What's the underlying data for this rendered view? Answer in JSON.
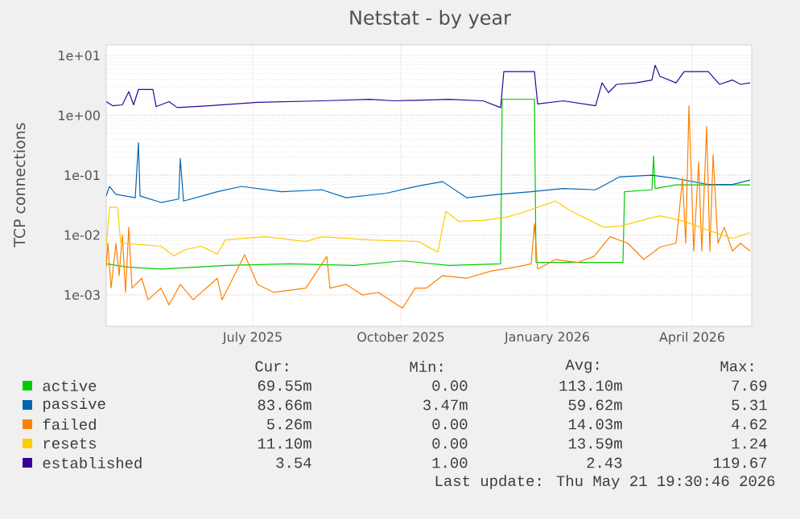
{
  "chart_data": {
    "type": "line",
    "title": "Netstat - by year",
    "ylabel": "TCP connections",
    "log": "y",
    "grid": true,
    "legend": "bottom",
    "xlim": [
      "2025-04-16",
      "2026-05-22"
    ],
    "xticks": [
      {
        "value": "2025-07-16",
        "label": "July 2025"
      },
      {
        "value": "2025-10-16",
        "label": "October 2025"
      },
      {
        "value": "2026-01-15",
        "label": "January 2026"
      },
      {
        "value": "2026-04-15",
        "label": "April 2026"
      }
    ],
    "ylim": [
      0.0003,
      15
    ],
    "yticks": [
      {
        "value": 0.001,
        "label": "1e-03"
      },
      {
        "value": 0.01,
        "label": "1e-02"
      },
      {
        "value": 0.1,
        "label": "1e-01"
      },
      {
        "value": 1,
        "label": "1e+00"
      },
      {
        "value": 10,
        "label": "1e+01"
      }
    ],
    "series": [
      {
        "name": "active",
        "color": "#00cc00",
        "x": [
          "2025-04-16",
          "2025-04-30",
          "2025-05-20",
          "2025-06-29",
          "2025-08-08",
          "2025-09-17",
          "2025-10-17",
          "2025-11-15",
          "2025-12-17",
          "2025-12-18",
          "2026-01-07",
          "2026-01-08",
          "2026-02-03",
          "2026-03-03",
          "2026-03-04",
          "2026-03-21",
          "2026-03-22",
          "2026-03-23",
          "2026-04-05",
          "2026-05-21"
        ],
        "values": [
          0.0033,
          0.0029,
          0.0027,
          0.0031,
          0.0033,
          0.0031,
          0.0037,
          0.0031,
          0.0033,
          1.86,
          1.86,
          0.0035,
          0.0035,
          0.0035,
          0.053,
          0.057,
          0.21,
          0.06,
          0.069,
          0.069
        ]
      },
      {
        "name": "passive",
        "color": "#0066b3",
        "x": [
          "2025-04-16",
          "2025-04-18",
          "2025-04-22",
          "2025-05-04",
          "2025-05-06",
          "2025-05-07",
          "2025-05-20",
          "2025-05-31",
          "2025-06-01",
          "2025-06-03",
          "2025-06-24",
          "2025-07-09",
          "2025-08-03",
          "2025-08-28",
          "2025-09-12",
          "2025-10-07",
          "2025-10-29",
          "2025-11-11",
          "2025-11-26",
          "2025-12-16",
          "2026-01-05",
          "2026-01-25",
          "2026-02-14",
          "2026-03-01",
          "2026-03-21",
          "2026-04-05",
          "2026-04-25",
          "2026-05-10",
          "2026-05-21"
        ],
        "values": [
          0.045,
          0.065,
          0.048,
          0.042,
          0.35,
          0.045,
          0.035,
          0.04,
          0.19,
          0.037,
          0.053,
          0.065,
          0.053,
          0.057,
          0.042,
          0.05,
          0.068,
          0.078,
          0.042,
          0.048,
          0.053,
          0.06,
          0.057,
          0.094,
          0.1,
          0.088,
          0.07,
          0.07,
          0.083
        ]
      },
      {
        "name": "failed",
        "color": "#ff8000",
        "x": [
          "2025-04-16",
          "2025-04-17",
          "2025-04-19",
          "2025-04-22",
          "2025-04-24",
          "2025-04-26",
          "2025-04-28",
          "2025-04-30",
          "2025-05-02",
          "2025-05-08",
          "2025-05-12",
          "2025-05-20",
          "2025-05-25",
          "2025-06-01",
          "2025-06-09",
          "2025-06-24",
          "2025-06-27",
          "2025-07-11",
          "2025-07-19",
          "2025-07-29",
          "2025-08-18",
          "2025-08-31",
          "2025-09-02",
          "2025-09-12",
          "2025-09-22",
          "2025-10-02",
          "2025-10-17",
          "2025-10-25",
          "2025-11-01",
          "2025-11-11",
          "2025-11-26",
          "2025-12-11",
          "2025-12-26",
          "2026-01-05",
          "2026-01-07",
          "2026-01-09",
          "2026-01-20",
          "2026-02-03",
          "2026-02-13",
          "2026-02-23",
          "2026-03-06",
          "2026-03-16",
          "2026-03-26",
          "2026-04-05",
          "2026-04-09",
          "2026-04-11",
          "2026-04-13",
          "2026-04-16",
          "2026-04-19",
          "2026-04-21",
          "2026-04-24",
          "2026-04-26",
          "2026-04-28",
          "2026-05-01",
          "2026-05-05",
          "2026-05-10",
          "2026-05-15",
          "2026-05-21"
        ],
        "values": [
          0.0029,
          0.0073,
          0.0013,
          0.0073,
          0.0021,
          0.01,
          0.0011,
          0.0135,
          0.0013,
          0.0019,
          0.00083,
          0.0013,
          0.00068,
          0.0015,
          0.00083,
          0.0019,
          0.00083,
          0.0047,
          0.0015,
          0.0011,
          0.0013,
          0.0044,
          0.0013,
          0.0015,
          0.001,
          0.0011,
          0.0006,
          0.0013,
          0.0013,
          0.0021,
          0.0019,
          0.0025,
          0.0029,
          0.0033,
          0.0154,
          0.0027,
          0.0039,
          0.0035,
          0.0044,
          0.0094,
          0.0073,
          0.0039,
          0.0063,
          0.0073,
          0.088,
          0.0073,
          1.45,
          0.0054,
          0.165,
          0.0054,
          0.65,
          0.0054,
          0.22,
          0.0073,
          0.0135,
          0.0054,
          0.0073,
          0.0054
        ]
      },
      {
        "name": "resets",
        "color": "#ffcc00",
        "x": [
          "2025-04-16",
          "2025-04-18",
          "2025-04-23",
          "2025-04-25",
          "2025-05-20",
          "2025-05-28",
          "2025-06-04",
          "2025-06-14",
          "2025-06-24",
          "2025-06-29",
          "2025-07-24",
          "2025-08-18",
          "2025-08-28",
          "2025-09-27",
          "2025-10-27",
          "2025-11-08",
          "2025-11-13",
          "2025-11-21",
          "2025-12-06",
          "2025-12-21",
          "2025-12-31",
          "2026-01-20",
          "2026-01-30",
          "2026-02-19",
          "2026-03-01",
          "2026-03-16",
          "2026-03-26",
          "2026-04-10",
          "2026-04-25",
          "2026-05-10",
          "2026-05-21"
        ],
        "values": [
          0.0065,
          0.029,
          0.029,
          0.0074,
          0.0065,
          0.0045,
          0.0057,
          0.0065,
          0.0048,
          0.0083,
          0.0094,
          0.0078,
          0.0094,
          0.0083,
          0.0078,
          0.0052,
          0.025,
          0.017,
          0.0175,
          0.02,
          0.024,
          0.037,
          0.025,
          0.0135,
          0.014,
          0.018,
          0.021,
          0.017,
          0.012,
          0.0088,
          0.011
        ]
      },
      {
        "name": "established",
        "color": "#330099",
        "x": [
          "2025-04-16",
          "2025-04-20",
          "2025-04-26",
          "2025-04-30",
          "2025-05-03",
          "2025-05-06",
          "2025-05-15",
          "2025-05-17",
          "2025-05-25",
          "2025-05-30",
          "2025-06-19",
          "2025-07-19",
          "2025-08-28",
          "2025-09-27",
          "2025-10-12",
          "2025-11-15",
          "2025-12-06",
          "2025-12-17",
          "2025-12-19",
          "2026-01-07",
          "2026-01-09",
          "2026-01-25",
          "2026-02-14",
          "2026-02-18",
          "2026-02-22",
          "2026-02-27",
          "2026-03-11",
          "2026-03-21",
          "2026-03-23",
          "2026-03-26",
          "2026-04-05",
          "2026-04-10",
          "2026-04-25",
          "2026-05-02",
          "2026-05-10",
          "2026-05-15",
          "2026-05-21"
        ],
        "values": [
          1.7,
          1.45,
          1.5,
          2.5,
          1.5,
          2.7,
          2.7,
          1.4,
          1.7,
          1.35,
          1.45,
          1.65,
          1.75,
          1.85,
          1.75,
          1.85,
          1.75,
          1.35,
          5.4,
          5.4,
          1.55,
          1.75,
          1.45,
          3.5,
          2.4,
          3.3,
          3.5,
          3.9,
          6.9,
          4.5,
          3.5,
          5.4,
          5.4,
          3.3,
          3.9,
          3.3,
          3.5
        ]
      }
    ],
    "annotations": [
      "Cur:",
      "Min:",
      "Avg:",
      "Max:",
      "69.55m",
      "0.00",
      "113.10m",
      "7.69",
      "83.66m",
      "3.47m",
      "59.62m",
      "5.31",
      "5.26m",
      "0.00",
      "14.03m",
      "4.62",
      "11.10m",
      "0.00",
      "13.59m",
      "1.24",
      "3.54",
      "1.00",
      "2.43",
      "119.67",
      "Last update: Thu May 21 19:30:46 2026"
    ]
  }
}
